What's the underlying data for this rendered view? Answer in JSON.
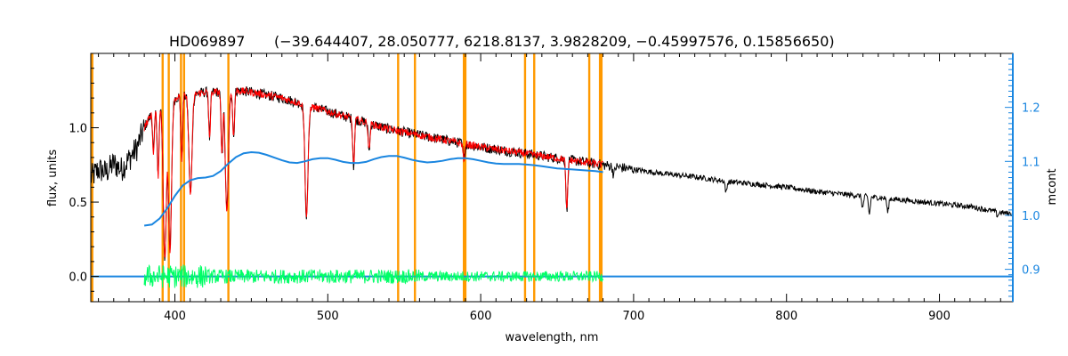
{
  "chart_data": {
    "type": "line",
    "title": "HD069897",
    "params": "(−39.644407, 28.050777, 6218.8137, 3.9828209, −0.45997576, 0.15856650)",
    "xlabel": "wavelength, nm",
    "ylabel": "flux, units",
    "y2label": "mcont",
    "xlim": [
      345,
      948
    ],
    "ylim": [
      -0.17,
      1.5
    ],
    "y2lim": [
      0.84,
      1.3
    ],
    "x_ticks": [
      400,
      500,
      600,
      700,
      800,
      900
    ],
    "x_tick_labels": [
      "400",
      "500",
      "600",
      "700",
      "800",
      "900"
    ],
    "y_ticks": [
      0.0,
      0.5,
      1.0
    ],
    "y_tick_labels": [
      "0.0",
      "0.5",
      "1.0"
    ],
    "y2_ticks": [
      0.9,
      1.0,
      1.1,
      1.2
    ],
    "y2_tick_labels": [
      "0.9",
      "1.0",
      "1.1",
      "1.2"
    ],
    "grid": false,
    "colors": {
      "observed": "#000000",
      "model": "#ff0000",
      "continuum": "#1a86e0",
      "residual": "#00ff66",
      "masks": "#ff9900",
      "right_axis": "#1a86e0"
    },
    "mask_lines": [
      346,
      392,
      396,
      404,
      406,
      435,
      546,
      557,
      589,
      590,
      629,
      635,
      671,
      678,
      679
    ],
    "continuum_curve": {
      "x": [
        380,
        385,
        390,
        395,
        400,
        405,
        410,
        415,
        420,
        425,
        430,
        435,
        440,
        445,
        450,
        455,
        460,
        465,
        470,
        475,
        480,
        485,
        490,
        495,
        500,
        505,
        510,
        515,
        520,
        525,
        530,
        535,
        540,
        545,
        550,
        555,
        560,
        565,
        570,
        575,
        580,
        585,
        590,
        595,
        600,
        605,
        610,
        615,
        620,
        625,
        630,
        635,
        640,
        645,
        650,
        655,
        660,
        665,
        670,
        675,
        680
      ],
      "y": [
        0.981,
        0.983,
        0.994,
        1.013,
        1.036,
        1.055,
        1.065,
        1.069,
        1.07,
        1.073,
        1.082,
        1.096,
        1.108,
        1.115,
        1.117,
        1.116,
        1.112,
        1.107,
        1.102,
        1.098,
        1.097,
        1.1,
        1.104,
        1.106,
        1.106,
        1.103,
        1.099,
        1.097,
        1.097,
        1.099,
        1.104,
        1.108,
        1.11,
        1.11,
        1.107,
        1.103,
        1.1,
        1.098,
        1.099,
        1.101,
        1.104,
        1.106,
        1.106,
        1.104,
        1.101,
        1.098,
        1.096,
        1.095,
        1.095,
        1.095,
        1.094,
        1.093,
        1.091,
        1.089,
        1.087,
        1.086,
        1.085,
        1.084,
        1.083,
        1.082,
        1.08
      ]
    },
    "observed_envelope": {
      "x": [
        345,
        350,
        355,
        360,
        365,
        370,
        375,
        380,
        385,
        390,
        395,
        400,
        410,
        420,
        430,
        440,
        450,
        460,
        470,
        480,
        500,
        520,
        540,
        560,
        580,
        600,
        620,
        640,
        660,
        680,
        700,
        720,
        740,
        760,
        780,
        800,
        820,
        840,
        860,
        880,
        900,
        920,
        940,
        948
      ],
      "y": [
        0.66,
        0.72,
        0.7,
        0.76,
        0.72,
        0.79,
        0.86,
        1.0,
        1.1,
        1.13,
        1.15,
        1.2,
        1.22,
        1.24,
        1.24,
        1.25,
        1.24,
        1.22,
        1.2,
        1.17,
        1.11,
        1.05,
        0.99,
        0.95,
        0.91,
        0.87,
        0.84,
        0.81,
        0.78,
        0.75,
        0.72,
        0.69,
        0.67,
        0.64,
        0.62,
        0.6,
        0.57,
        0.55,
        0.53,
        0.51,
        0.49,
        0.47,
        0.43,
        0.42
      ]
    },
    "absorption_lines": [
      {
        "x": 386,
        "depth": 0.25
      },
      {
        "x": 389,
        "depth": 0.4
      },
      {
        "x": 393.4,
        "depth": 0.9
      },
      {
        "x": 396.8,
        "depth": 0.85
      },
      {
        "x": 404.5,
        "depth": 0.35
      },
      {
        "x": 410.2,
        "depth": 0.55
      },
      {
        "x": 422.7,
        "depth": 0.25
      },
      {
        "x": 430.8,
        "depth": 0.35
      },
      {
        "x": 434.0,
        "depth": 0.65
      },
      {
        "x": 438.4,
        "depth": 0.25
      },
      {
        "x": 486.1,
        "depth": 0.65
      },
      {
        "x": 516.9,
        "depth": 0.3
      },
      {
        "x": 527.0,
        "depth": 0.18
      },
      {
        "x": 589.0,
        "depth": 0.12
      },
      {
        "x": 656.3,
        "depth": 0.45
      },
      {
        "x": 687.0,
        "depth": 0.08
      },
      {
        "x": 760.5,
        "depth": 0.12
      },
      {
        "x": 849.8,
        "depth": 0.15
      },
      {
        "x": 854.2,
        "depth": 0.22
      },
      {
        "x": 866.2,
        "depth": 0.18
      },
      {
        "x": 938.0,
        "depth": 0.06
      }
    ],
    "model_range": [
      380,
      680
    ],
    "residual_range": [
      380,
      680
    ],
    "residual_amplitude": 0.08
  }
}
